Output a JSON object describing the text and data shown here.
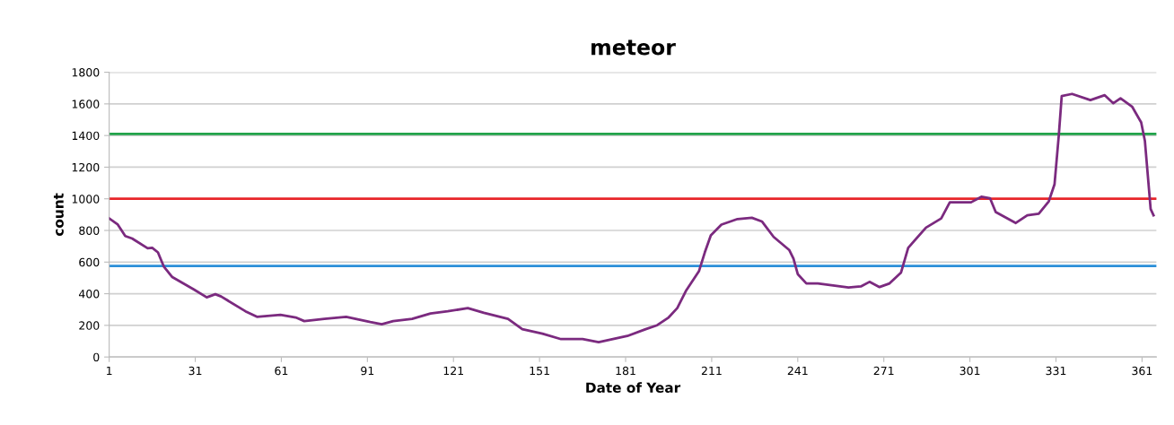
{
  "chart_data": {
    "type": "line",
    "title": "meteor",
    "xlabel": "Date of Year",
    "ylabel": "count",
    "xlim": [
      1,
      366
    ],
    "xticks": [
      1,
      31,
      61,
      91,
      121,
      151,
      181,
      211,
      241,
      271,
      301,
      331,
      361
    ],
    "ylim": [
      0,
      1800
    ],
    "yticks": [
      0,
      200,
      400,
      600,
      800,
      1000,
      1200,
      1400,
      1600,
      1800
    ],
    "grid": "y",
    "legend": false,
    "marker": "none",
    "line_style": "solid",
    "ref_lines": [
      {
        "axis": "y",
        "value": 1410,
        "color": "#21a34a"
      },
      {
        "axis": "y",
        "value": 1000,
        "color": "#e8262a"
      },
      {
        "axis": "y",
        "value": 575,
        "color": "#2b8fd8"
      }
    ],
    "series": [
      {
        "color": "#7b2a7f",
        "x": [
          1,
          4,
          6.6,
          9,
          14.4,
          16,
          18,
          20,
          23,
          30.6,
          35,
          38,
          40,
          48.5,
          52.5,
          60.7,
          66,
          69,
          76,
          83.6,
          92,
          96,
          100,
          106.6,
          113,
          119,
          126,
          131.6,
          140,
          145,
          152,
          158.5,
          166,
          171.6,
          181.6,
          188,
          192,
          196,
          199,
          202,
          206.6,
          208.6,
          210.7,
          214.4,
          220,
          225,
          228.5,
          232.6,
          238,
          239.5,
          241,
          244,
          248,
          258.7,
          263,
          266,
          269.5,
          273,
          277,
          279.5,
          285.7,
          291,
          294,
          301.4,
          305,
          308,
          310,
          317,
          321,
          325,
          328.5,
          330.5,
          332,
          333,
          336.6,
          343,
          348,
          351,
          353.5,
          357.6,
          360.7,
          362,
          364,
          365
        ],
        "values": [
          876,
          837,
          765,
          749,
          687,
          690,
          661,
          573,
          505,
          426,
          377,
          397,
          383,
          289,
          254,
          266,
          250,
          227,
          241,
          254,
          221,
          207,
          227,
          241,
          275,
          289,
          309,
          279,
          241,
          176,
          148,
          113,
          113,
          94,
          133,
          176,
          201,
          250,
          309,
          417,
          544,
          661,
          769,
          837,
          872,
          880,
          857,
          759,
          677,
          622,
          524,
          465,
          465,
          440,
          446,
          475,
          442,
          465,
          534,
          690,
          818,
          876,
          978,
          978,
          1013,
          1004,
          916,
          847,
          896,
          906,
          984,
          1092,
          1405,
          1650,
          1663,
          1624,
          1655,
          1604,
          1635,
          1581,
          1483,
          1365,
          935,
          896
        ]
      }
    ]
  }
}
